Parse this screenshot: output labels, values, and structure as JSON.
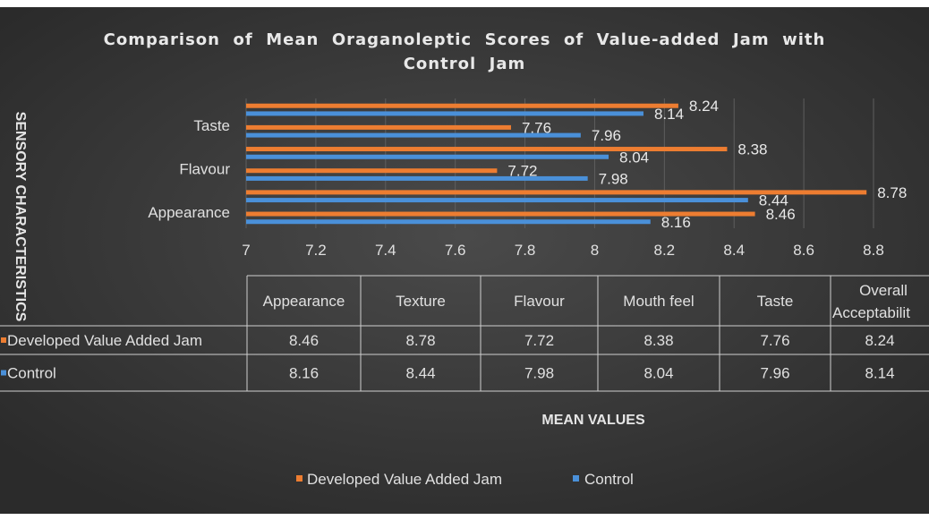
{
  "chart_data": {
    "type": "bar",
    "orientation": "horizontal",
    "title": "Comparison  of  Mean  Oraganoleptic  Scores  of  Value-added  Jam  with  Control  Jam",
    "title_lines": [
      "Comparison  of  Mean  Oraganoleptic  Scores  of  Value-added  Jam  with",
      "Control  Jam"
    ],
    "categories": [
      "Appearance",
      "Texture",
      "Flavour",
      "Mouth feel",
      "Taste",
      "Overall Acceptability"
    ],
    "axis_category_labels": [
      "Appearance",
      "Flavour",
      "Taste"
    ],
    "table_headers": [
      "Appearance",
      "Texture",
      "Flavour",
      "Mouth feel",
      "Taste",
      "Overall Acceptabilit"
    ],
    "series": [
      {
        "name": "Developed Value Added Jam",
        "color": "#ed7d31",
        "values": [
          8.46,
          8.78,
          7.72,
          8.38,
          7.76,
          8.24
        ]
      },
      {
        "name": "Control",
        "color": "#4a90d9",
        "values": [
          8.16,
          8.44,
          7.98,
          8.04,
          7.96,
          8.14
        ]
      }
    ],
    "data_labels": [
      [
        "8.46",
        "8.78",
        "7.72",
        "8.38",
        "7.76",
        "8.24"
      ],
      [
        "8.16",
        "8.44",
        "7.98",
        "8.04",
        "7.96",
        "8.14"
      ]
    ],
    "table_legend": [
      "Developed Value Added Jam",
      "Control"
    ],
    "xlim": [
      7,
      8.8
    ],
    "xticks": [
      7,
      7.2,
      7.4,
      7.6,
      7.8,
      8,
      8.2,
      8.4,
      8.6,
      8.8
    ],
    "xtick_labels": [
      "7",
      "7.2",
      "7.4",
      "7.6",
      "7.8",
      "8",
      "8.2",
      "8.4",
      "8.6",
      "8.8"
    ],
    "xlabel": "MEAN VALUES",
    "ylabel": "SENSORY CHARACTERISTICS",
    "legend": [
      "Developed Value Added Jam",
      "Control"
    ],
    "legend_position": "bottom",
    "grid": true,
    "background": "#3a3a3a"
  }
}
